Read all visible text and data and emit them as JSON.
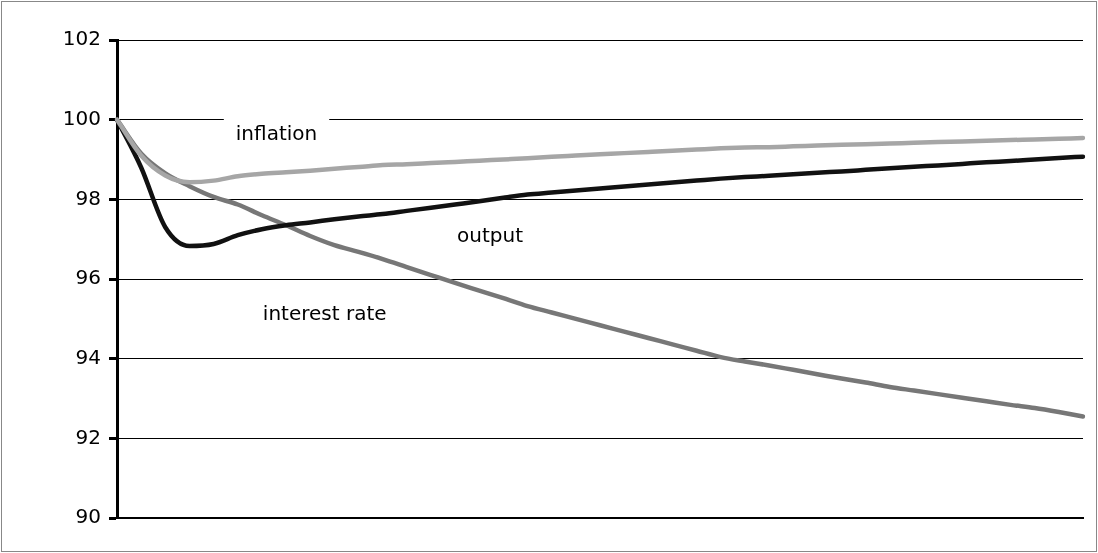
{
  "chart_data": {
    "type": "line",
    "categories": [
      null,
      null,
      null,
      null,
      null,
      null,
      null,
      null,
      null,
      null,
      null,
      null,
      null,
      null,
      null,
      null,
      null,
      null,
      null,
      null,
      null,
      null,
      null,
      null,
      null,
      null,
      null,
      null,
      null,
      null,
      null,
      null,
      null,
      null,
      null,
      null,
      null,
      null,
      null,
      null,
      null
    ],
    "series": [
      {
        "name": "inflation",
        "color": "#a6a6a6",
        "values": [
          100,
          99.1,
          98.6,
          98.43,
          98.47,
          98.58,
          98.64,
          98.68,
          98.72,
          98.77,
          98.81,
          98.86,
          98.88,
          98.91,
          98.94,
          98.97,
          99.0,
          99.03,
          99.07,
          99.1,
          99.13,
          99.16,
          99.19,
          99.22,
          99.25,
          99.28,
          99.3,
          99.31,
          99.33,
          99.35,
          99.37,
          99.38,
          99.4,
          99.42,
          99.44,
          99.45,
          99.47,
          99.49,
          99.5,
          99.52,
          99.54
        ]
      },
      {
        "name": "output",
        "color": "#111111",
        "values": [
          100,
          98.8,
          97.3,
          96.83,
          96.88,
          97.1,
          97.25,
          97.35,
          97.42,
          97.5,
          97.57,
          97.63,
          97.71,
          97.79,
          97.87,
          97.95,
          98.04,
          98.12,
          98.17,
          98.22,
          98.27,
          98.32,
          98.37,
          98.42,
          98.47,
          98.52,
          98.56,
          98.59,
          98.63,
          98.67,
          98.7,
          98.74,
          98.78,
          98.82,
          98.85,
          98.89,
          98.93,
          98.96,
          99.0,
          99.04,
          99.07
        ]
      },
      {
        "name": "interest rate",
        "color": "#777777",
        "values": [
          100,
          99.15,
          98.65,
          98.33,
          98.06,
          97.87,
          97.6,
          97.35,
          97.08,
          96.85,
          96.68,
          96.5,
          96.3,
          96.1,
          95.9,
          95.71,
          95.52,
          95.32,
          95.16,
          95.0,
          94.84,
          94.68,
          94.52,
          94.36,
          94.2,
          94.04,
          93.93,
          93.83,
          93.72,
          93.61,
          93.5,
          93.4,
          93.29,
          93.2,
          93.11,
          93.02,
          92.93,
          92.84,
          92.76,
          92.66,
          92.55
        ]
      }
    ],
    "ylim": [
      90,
      102
    ],
    "yticks": [
      90,
      92,
      94,
      96,
      98,
      100,
      102
    ],
    "grid": "y",
    "marker": "none",
    "line_style": "solid",
    "legend": false,
    "tick_labels": "y"
  }
}
